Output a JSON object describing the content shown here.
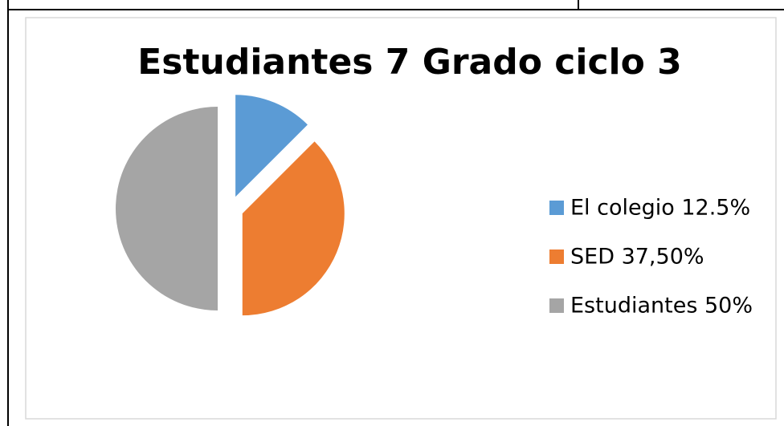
{
  "chart_data": {
    "type": "pie",
    "title": "Estudiantes 7 Grado ciclo 3",
    "categories": [
      "El colegio 12.5%",
      "SED 37,50%",
      "Estudiantes 50%"
    ],
    "values": [
      12.5,
      37.5,
      50
    ],
    "colors": [
      "#5b9bd5",
      "#ed7d31",
      "#a5a5a5"
    ],
    "legend": "right"
  }
}
